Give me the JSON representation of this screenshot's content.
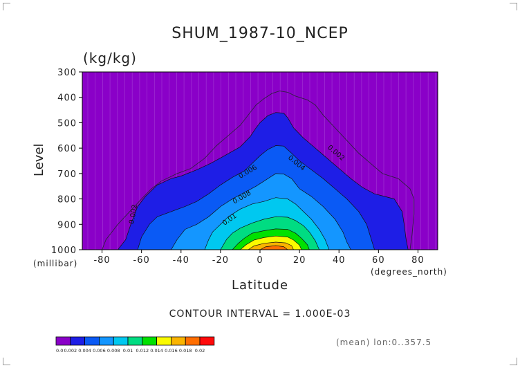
{
  "chart_data": {
    "type": "contour",
    "title": "SHUM_1987-10_NCEP",
    "units": "(kg/kg)",
    "ylabel": "Level",
    "xlabel": "Latitude",
    "y_unit_label": "(millibar)",
    "x_unit_label": "(degrees_north)",
    "xlim": [
      -90,
      90
    ],
    "ylim": [
      1000,
      300
    ],
    "x_ticks": [
      -80,
      -60,
      -40,
      -20,
      0,
      20,
      40,
      60,
      80
    ],
    "y_ticks": [
      300,
      400,
      500,
      600,
      700,
      800,
      900,
      1000
    ],
    "contour_interval_text": "CONTOUR INTERVAL = 1.000E-03",
    "contour_labels": [
      "0.002",
      "0.004",
      "0.006",
      "0.008",
      "0.01",
      "0.002"
    ],
    "footer_text": "(mean) lon:0..357.5",
    "colorbar": {
      "labels": [
        "0.0",
        "0.002",
        "0.004",
        "0.006",
        "0.008",
        "0.01",
        "0.012",
        "0.014",
        "0.016",
        "0.018",
        "0.02"
      ],
      "colors": [
        "#8a00c8",
        "#1e1ee6",
        "#0a5af5",
        "#1496ff",
        "#00c8f0",
        "#00dc82",
        "#00e100",
        "#fafa00",
        "#fab400",
        "#ff6e00",
        "#ff0a0a"
      ]
    },
    "levels": [
      {
        "value": 0.002,
        "profile": [
          [
            -72,
            1000
          ],
          [
            -68,
            960
          ],
          [
            -65,
            890
          ],
          [
            -62,
            830
          ],
          [
            -58,
            790
          ],
          [
            -52,
            745
          ],
          [
            -45,
            720
          ],
          [
            -40,
            710
          ],
          [
            -32,
            685
          ],
          [
            -25,
            660
          ],
          [
            -18,
            630
          ],
          [
            -10,
            595
          ],
          [
            -5,
            555
          ],
          [
            -2,
            520
          ],
          [
            0,
            500
          ],
          [
            4,
            472
          ],
          [
            8,
            460
          ],
          [
            12,
            462
          ],
          [
            14,
            480
          ],
          [
            17,
            520
          ],
          [
            22,
            560
          ],
          [
            28,
            600
          ],
          [
            34,
            640
          ],
          [
            40,
            680
          ],
          [
            46,
            720
          ],
          [
            52,
            755
          ],
          [
            58,
            780
          ],
          [
            63,
            790
          ],
          [
            68,
            800
          ],
          [
            72,
            850
          ],
          [
            73,
            900
          ],
          [
            74,
            960
          ],
          [
            75,
            1000
          ]
        ]
      },
      {
        "value": 0.004,
        "profile": [
          [
            -62,
            1000
          ],
          [
            -60,
            950
          ],
          [
            -56,
            900
          ],
          [
            -52,
            870
          ],
          [
            -45,
            850
          ],
          [
            -38,
            830
          ],
          [
            -32,
            810
          ],
          [
            -26,
            780
          ],
          [
            -20,
            745
          ],
          [
            -14,
            715
          ],
          [
            -8,
            690
          ],
          [
            -4,
            660
          ],
          [
            0,
            630
          ],
          [
            4,
            605
          ],
          [
            8,
            590
          ],
          [
            12,
            592
          ],
          [
            16,
            620
          ],
          [
            20,
            650
          ],
          [
            26,
            685
          ],
          [
            32,
            720
          ],
          [
            38,
            760
          ],
          [
            44,
            800
          ],
          [
            50,
            850
          ],
          [
            54,
            900
          ],
          [
            56,
            950
          ],
          [
            58,
            1000
          ]
        ]
      },
      {
        "value": 0.006,
        "profile": [
          [
            -45,
            1000
          ],
          [
            -42,
            960
          ],
          [
            -38,
            920
          ],
          [
            -32,
            900
          ],
          [
            -26,
            870
          ],
          [
            -20,
            830
          ],
          [
            -14,
            800
          ],
          [
            -8,
            775
          ],
          [
            -2,
            750
          ],
          [
            4,
            720
          ],
          [
            8,
            700
          ],
          [
            12,
            702
          ],
          [
            16,
            720
          ],
          [
            20,
            760
          ],
          [
            26,
            790
          ],
          [
            32,
            830
          ],
          [
            38,
            880
          ],
          [
            42,
            930
          ],
          [
            44,
            970
          ],
          [
            46,
            1000
          ]
        ]
      },
      {
        "value": 0.008,
        "profile": [
          [
            -28,
            1000
          ],
          [
            -26,
            960
          ],
          [
            -24,
            930
          ],
          [
            -20,
            900
          ],
          [
            -16,
            870
          ],
          [
            -10,
            840
          ],
          [
            -4,
            820
          ],
          [
            2,
            810
          ],
          [
            8,
            795
          ],
          [
            14,
            800
          ],
          [
            18,
            820
          ],
          [
            22,
            850
          ],
          [
            26,
            880
          ],
          [
            30,
            920
          ],
          [
            33,
            960
          ],
          [
            35,
            1000
          ]
        ]
      },
      {
        "value": 0.01,
        "profile": [
          [
            -20,
            1000
          ],
          [
            -17,
            960
          ],
          [
            -14,
            935
          ],
          [
            -10,
            915
          ],
          [
            -4,
            895
          ],
          [
            2,
            880
          ],
          [
            8,
            870
          ],
          [
            14,
            872
          ],
          [
            18,
            885
          ],
          [
            22,
            905
          ],
          [
            25,
            930
          ],
          [
            28,
            965
          ],
          [
            30,
            1000
          ]
        ]
      },
      {
        "value": 0.012,
        "profile": [
          [
            -14,
            1000
          ],
          [
            -11,
            975
          ],
          [
            -8,
            955
          ],
          [
            -4,
            935
          ],
          [
            2,
            925
          ],
          [
            8,
            918
          ],
          [
            14,
            920
          ],
          [
            18,
            935
          ],
          [
            21,
            955
          ],
          [
            24,
            980
          ],
          [
            25,
            1000
          ]
        ]
      },
      {
        "value": 0.014,
        "profile": [
          [
            -10,
            1000
          ],
          [
            -7,
            980
          ],
          [
            -3,
            962
          ],
          [
            2,
            952
          ],
          [
            8,
            946
          ],
          [
            14,
            950
          ],
          [
            17,
            962
          ],
          [
            20,
            982
          ],
          [
            21,
            1000
          ]
        ]
      },
      {
        "value": 0.016,
        "profile": [
          [
            -6,
            1000
          ],
          [
            -3,
            985
          ],
          [
            2,
            975
          ],
          [
            8,
            970
          ],
          [
            13,
            973
          ],
          [
            16,
            984
          ],
          [
            17,
            1000
          ]
        ]
      },
      {
        "value": 0.018,
        "profile": [
          [
            0,
            1000
          ],
          [
            3,
            988
          ],
          [
            8,
            984
          ],
          [
            12,
            988
          ],
          [
            14,
            1000
          ]
        ]
      }
    ],
    "outer_contour_0_001": [
      [
        -80,
        1000
      ],
      [
        -78,
        960
      ],
      [
        -72,
        900
      ],
      [
        -66,
        850
      ],
      [
        -60,
        800
      ],
      [
        -55,
        760
      ],
      [
        -50,
        730
      ],
      [
        -42,
        700
      ],
      [
        -35,
        680
      ],
      [
        -28,
        640
      ],
      [
        -22,
        590
      ],
      [
        -16,
        550
      ],
      [
        -10,
        510
      ],
      [
        -6,
        470
      ],
      [
        -2,
        430
      ],
      [
        2,
        405
      ],
      [
        6,
        385
      ],
      [
        10,
        375
      ],
      [
        14,
        380
      ],
      [
        18,
        395
      ],
      [
        24,
        410
      ],
      [
        28,
        430
      ],
      [
        32,
        470
      ],
      [
        38,
        520
      ],
      [
        44,
        570
      ],
      [
        50,
        620
      ],
      [
        56,
        660
      ],
      [
        62,
        700
      ],
      [
        70,
        720
      ],
      [
        76,
        760
      ],
      [
        78,
        800
      ],
      [
        78,
        860
      ],
      [
        77,
        940
      ],
      [
        76,
        1000
      ]
    ]
  }
}
